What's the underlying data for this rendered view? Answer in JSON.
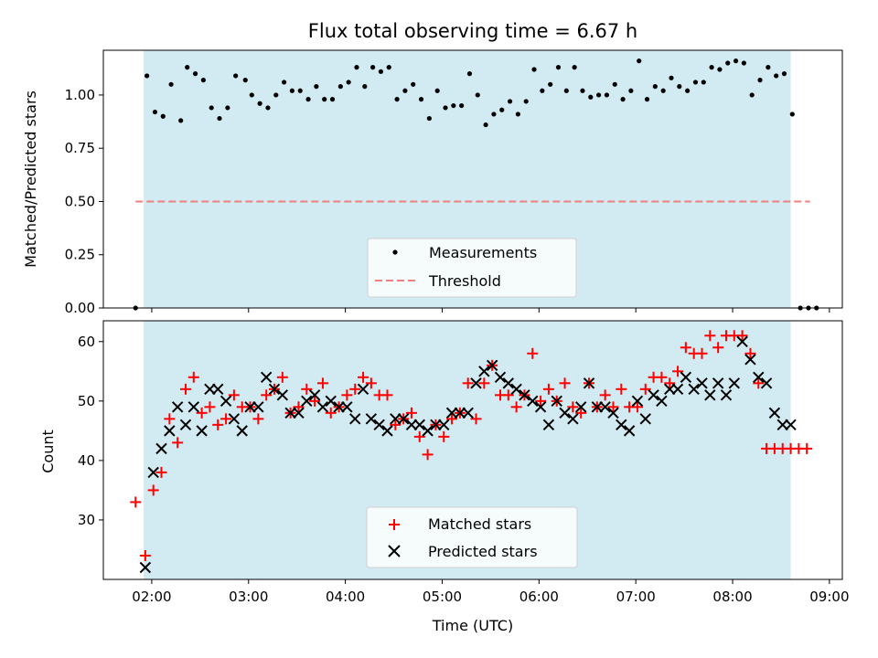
{
  "chart_data": [
    {
      "type": "scatter",
      "title": "Flux total observing time = 6.67 h",
      "xlabel": "",
      "ylabel": "Matched/Predicted stars",
      "xlim": [
        "01:30",
        "09:08"
      ],
      "ylim": [
        0,
        1.21
      ],
      "yticks": [
        0.0,
        0.25,
        0.5,
        0.75,
        1.0
      ],
      "ytick_labels": [
        "0.00",
        "0.25",
        "0.50",
        "0.75",
        "1.00"
      ],
      "shaded_span": [
        "01:55",
        "08:36"
      ],
      "shade_color": "#add8e6",
      "legend_position": "lower center",
      "legend": [
        "Measurements",
        "Threshold"
      ],
      "series": [
        {
          "name": "Measurements",
          "color": "#000000",
          "marker": "dot",
          "x": [
            "01:50",
            "01:57",
            "02:02",
            "02:07",
            "02:12",
            "02:18",
            "02:22",
            "02:27",
            "02:32",
            "02:37",
            "02:42",
            "02:47",
            "02:52",
            "02:58",
            "03:02",
            "03:07",
            "03:12",
            "03:17",
            "03:22",
            "03:27",
            "03:32",
            "03:37",
            "03:42",
            "03:47",
            "03:52",
            "03:57",
            "04:02",
            "04:07",
            "04:12",
            "04:17",
            "04:22",
            "04:27",
            "04:32",
            "04:37",
            "04:42",
            "04:47",
            "04:52",
            "04:57",
            "05:02",
            "05:07",
            "05:12",
            "05:17",
            "05:22",
            "05:27",
            "05:32",
            "05:37",
            "05:42",
            "05:47",
            "05:52",
            "05:57",
            "06:02",
            "06:07",
            "06:12",
            "06:17",
            "06:22",
            "06:27",
            "06:32",
            "06:37",
            "06:42",
            "06:47",
            "06:52",
            "06:57",
            "07:02",
            "07:07",
            "07:12",
            "07:17",
            "07:22",
            "07:27",
            "07:32",
            "07:37",
            "07:42",
            "07:47",
            "07:52",
            "07:57",
            "08:02",
            "08:07",
            "08:12",
            "08:17",
            "08:22",
            "08:27",
            "08:32",
            "08:37",
            "08:42",
            "08:47",
            "08:52"
          ],
          "y": [
            0.0,
            1.09,
            0.92,
            0.9,
            1.05,
            0.88,
            1.13,
            1.1,
            1.07,
            0.94,
            0.89,
            0.94,
            1.09,
            1.07,
            1.0,
            0.96,
            0.94,
            1.0,
            1.06,
            1.02,
            1.02,
            0.98,
            1.04,
            0.98,
            0.98,
            1.04,
            1.06,
            1.13,
            1.04,
            1.13,
            1.11,
            1.13,
            0.98,
            1.02,
            1.05,
            0.98,
            0.89,
            1.02,
            0.94,
            0.95,
            0.95,
            1.1,
            1.0,
            0.86,
            0.91,
            0.93,
            0.97,
            0.91,
            0.97,
            1.12,
            1.02,
            1.05,
            1.13,
            1.02,
            1.13,
            1.02,
            0.99,
            1.0,
            1.0,
            1.05,
            0.98,
            1.02,
            1.16,
            0.98,
            1.04,
            1.02,
            1.08,
            1.04,
            1.02,
            1.06,
            1.06,
            1.13,
            1.12,
            1.15,
            1.16,
            1.15,
            1.0,
            1.07,
            1.13,
            1.09,
            1.1,
            0.91,
            0.0,
            0.0,
            0.0
          ]
        },
        {
          "name": "Threshold",
          "color": "#f08080",
          "style": "dashed",
          "x": [
            "01:50",
            "08:48"
          ],
          "y": [
            0.5,
            0.5
          ]
        }
      ]
    },
    {
      "type": "scatter",
      "title": "",
      "xlabel": "Time (UTC)",
      "ylabel": "Count",
      "xlim": [
        "01:30",
        "09:08"
      ],
      "ylim": [
        20,
        63.5
      ],
      "yticks": [
        30,
        40,
        50,
        60
      ],
      "ytick_labels": [
        "30",
        "40",
        "50",
        "60"
      ],
      "xticks": [
        "02:00",
        "03:00",
        "04:00",
        "05:00",
        "06:00",
        "07:00",
        "08:00",
        "09:00"
      ],
      "xtick_labels": [
        "02:00",
        "03:00",
        "04:00",
        "05:00",
        "06:00",
        "07:00",
        "08:00",
        "09:00"
      ],
      "shaded_span": [
        "01:55",
        "08:36"
      ],
      "shade_color": "#add8e6",
      "legend_position": "lower center",
      "legend": [
        "Matched stars",
        "Predicted stars"
      ],
      "series": [
        {
          "name": "Matched stars",
          "color": "#ff0000",
          "marker": "plus",
          "x": [
            "01:50",
            "01:56",
            "02:01",
            "02:06",
            "02:11",
            "02:16",
            "02:21",
            "02:26",
            "02:31",
            "02:36",
            "02:41",
            "02:46",
            "02:51",
            "02:56",
            "03:01",
            "03:06",
            "03:11",
            "03:16",
            "03:21",
            "03:26",
            "03:31",
            "03:36",
            "03:41",
            "03:46",
            "03:51",
            "03:56",
            "04:01",
            "04:06",
            "04:11",
            "04:16",
            "04:21",
            "04:26",
            "04:31",
            "04:36",
            "04:41",
            "04:46",
            "04:51",
            "04:56",
            "05:01",
            "05:06",
            "05:11",
            "05:16",
            "05:21",
            "05:26",
            "05:31",
            "05:36",
            "05:41",
            "05:46",
            "05:51",
            "05:56",
            "06:01",
            "06:06",
            "06:11",
            "06:16",
            "06:21",
            "06:26",
            "06:31",
            "06:36",
            "06:41",
            "06:46",
            "06:51",
            "06:56",
            "07:01",
            "07:06",
            "07:11",
            "07:16",
            "07:21",
            "07:26",
            "07:31",
            "07:36",
            "07:41",
            "07:46",
            "07:51",
            "07:56",
            "08:01",
            "08:06",
            "08:11",
            "08:16",
            "08:21",
            "08:26",
            "08:31",
            "08:36",
            "08:41",
            "08:46"
          ],
          "y": [
            33,
            24,
            35,
            38,
            47,
            43,
            52,
            54,
            48,
            49,
            46,
            47,
            51,
            49,
            49,
            47,
            51,
            52,
            54,
            48,
            49,
            52,
            50,
            53,
            48,
            49,
            51,
            52,
            54,
            53,
            51,
            51,
            46,
            47,
            48,
            44,
            41,
            46,
            44,
            47,
            48,
            53,
            47,
            53,
            56,
            51,
            51,
            49,
            51,
            58,
            50,
            52,
            50,
            53,
            49,
            48,
            53,
            49,
            51,
            49,
            52,
            49,
            49,
            52,
            54,
            54,
            53,
            55,
            59,
            58,
            58,
            61,
            59,
            61,
            61,
            61,
            58,
            53,
            42,
            42,
            42,
            42,
            42,
            42
          ]
        },
        {
          "name": "Predicted stars",
          "color": "#000000",
          "marker": "x",
          "x": [
            "01:56",
            "02:01",
            "02:06",
            "02:11",
            "02:16",
            "02:21",
            "02:26",
            "02:31",
            "02:36",
            "02:41",
            "02:46",
            "02:51",
            "02:56",
            "03:01",
            "03:06",
            "03:11",
            "03:16",
            "03:21",
            "03:26",
            "03:31",
            "03:36",
            "03:41",
            "03:46",
            "03:51",
            "03:56",
            "04:01",
            "04:06",
            "04:11",
            "04:16",
            "04:21",
            "04:26",
            "04:31",
            "04:36",
            "04:41",
            "04:46",
            "04:51",
            "04:56",
            "05:01",
            "05:06",
            "05:11",
            "05:16",
            "05:21",
            "05:26",
            "05:31",
            "05:36",
            "05:41",
            "05:46",
            "05:51",
            "05:56",
            "06:01",
            "06:06",
            "06:11",
            "06:16",
            "06:21",
            "06:26",
            "06:31",
            "06:36",
            "06:41",
            "06:46",
            "06:51",
            "06:56",
            "07:01",
            "07:06",
            "07:11",
            "07:16",
            "07:21",
            "07:26",
            "07:31",
            "07:36",
            "07:41",
            "07:46",
            "07:51",
            "07:56",
            "08:01",
            "08:06",
            "08:11",
            "08:16",
            "08:21",
            "08:26",
            "08:31",
            "08:36"
          ],
          "y": [
            22,
            38,
            42,
            45,
            49,
            46,
            49,
            45,
            52,
            52,
            50,
            47,
            45,
            49,
            49,
            54,
            52,
            51,
            48,
            48,
            50,
            51,
            49,
            50,
            49,
            49,
            47,
            52,
            47,
            46,
            45,
            47,
            47,
            46,
            46,
            45,
            46,
            46,
            48,
            48,
            48,
            53,
            55,
            56,
            54,
            53,
            52,
            51,
            50,
            49,
            46,
            50,
            48,
            47,
            49,
            53,
            49,
            49,
            48,
            46,
            45,
            50,
            47,
            51,
            50,
            52,
            52,
            54,
            52,
            53,
            51,
            53,
            51,
            53,
            60,
            57,
            54,
            53,
            48,
            46,
            46
          ]
        }
      ]
    }
  ]
}
